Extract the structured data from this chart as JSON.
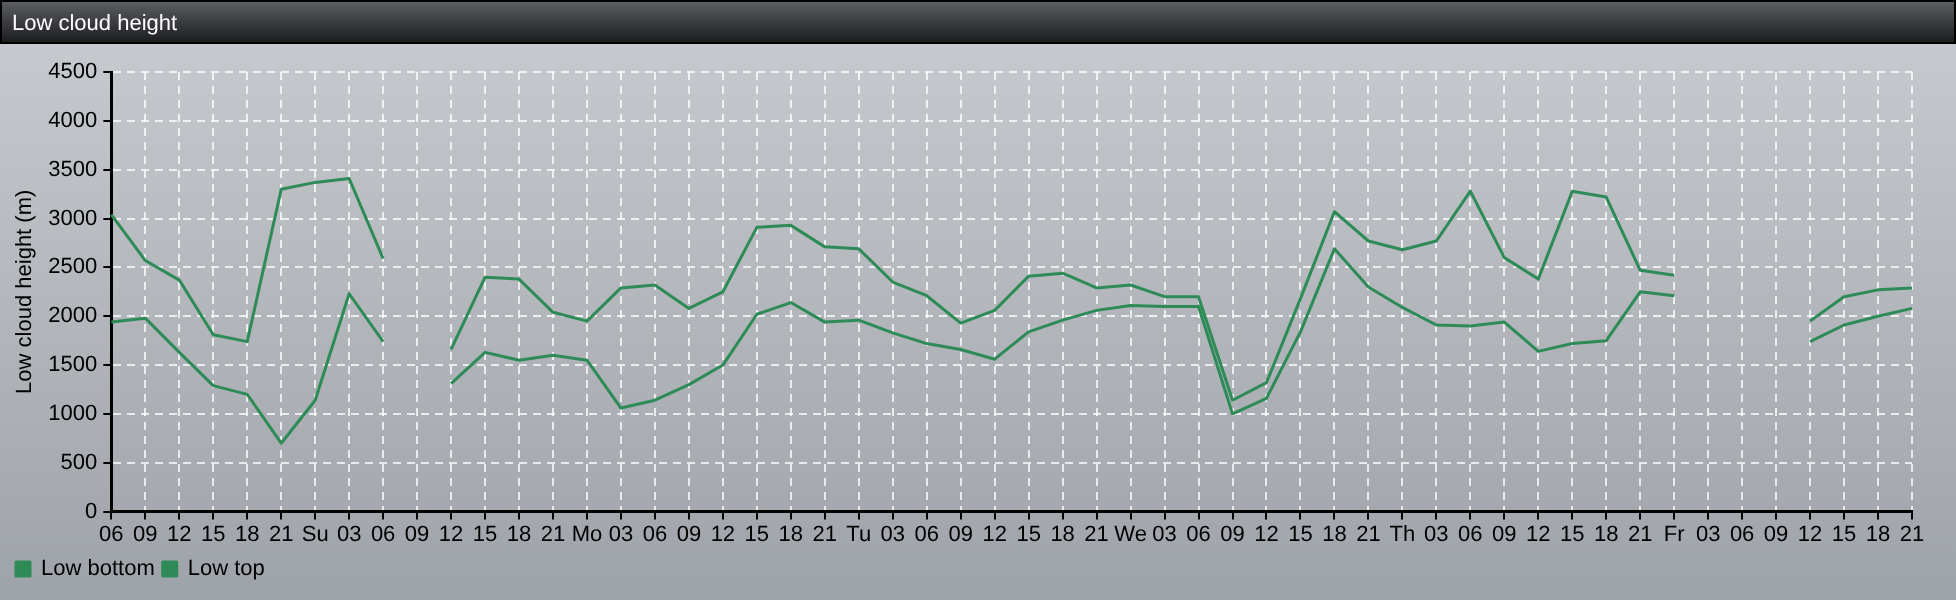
{
  "chart_data": {
    "type": "line",
    "title": "Low cloud height",
    "ylabel": "Low cloud height (m)",
    "categories": [
      "06",
      "09",
      "12",
      "15",
      "18",
      "21",
      "Su",
      "03",
      "06",
      "09",
      "12",
      "15",
      "18",
      "21",
      "Mo",
      "03",
      "06",
      "09",
      "12",
      "15",
      "18",
      "21",
      "Tu",
      "03",
      "06",
      "09",
      "12",
      "15",
      "18",
      "21",
      "We",
      "03",
      "06",
      "09",
      "12",
      "15",
      "18",
      "21",
      "Th",
      "03",
      "06",
      "09",
      "12",
      "15",
      "18",
      "21",
      "Fr",
      "03",
      "06",
      "09",
      "12",
      "15",
      "18",
      "21"
    ],
    "series": [
      {
        "name": "Low bottom",
        "color": "#2e8b57",
        "values": [
          1940,
          1980,
          1630,
          1290,
          1200,
          700,
          1140,
          2230,
          1740,
          null,
          1310,
          1630,
          1550,
          1600,
          1550,
          1060,
          1140,
          1300,
          1500,
          2020,
          2140,
          1940,
          1960,
          1830,
          1720,
          1660,
          1560,
          1840,
          1960,
          2060,
          2110,
          2100,
          2100,
          1000,
          1160,
          1840,
          2690,
          2300,
          2090,
          1910,
          1900,
          1940,
          1640,
          1720,
          1750,
          2250,
          2210,
          null,
          null,
          null,
          1740,
          1910,
          2000,
          2080
        ]
      },
      {
        "name": "Low top",
        "color": "#2e8b57",
        "values": [
          3040,
          2570,
          2370,
          1810,
          1740,
          3300,
          3370,
          3410,
          2590,
          null,
          1660,
          2400,
          2380,
          2040,
          1950,
          2290,
          2320,
          2080,
          2250,
          2910,
          2930,
          2710,
          2690,
          2350,
          2210,
          1930,
          2060,
          2410,
          2440,
          2290,
          2320,
          2200,
          2200,
          1140,
          1320,
          2180,
          3070,
          2770,
          2680,
          2770,
          3280,
          2600,
          2380,
          3280,
          3220,
          2470,
          2420,
          null,
          null,
          null,
          1950,
          2200,
          2270,
          2290
        ]
      }
    ],
    "ylim": [
      0,
      4500
    ],
    "yticks": [
      0,
      500,
      1000,
      1500,
      2000,
      2500,
      3000,
      3500,
      4000,
      4500
    ],
    "grid": true,
    "legend": "bottom left",
    "marker": "none",
    "line_style": "solid"
  }
}
